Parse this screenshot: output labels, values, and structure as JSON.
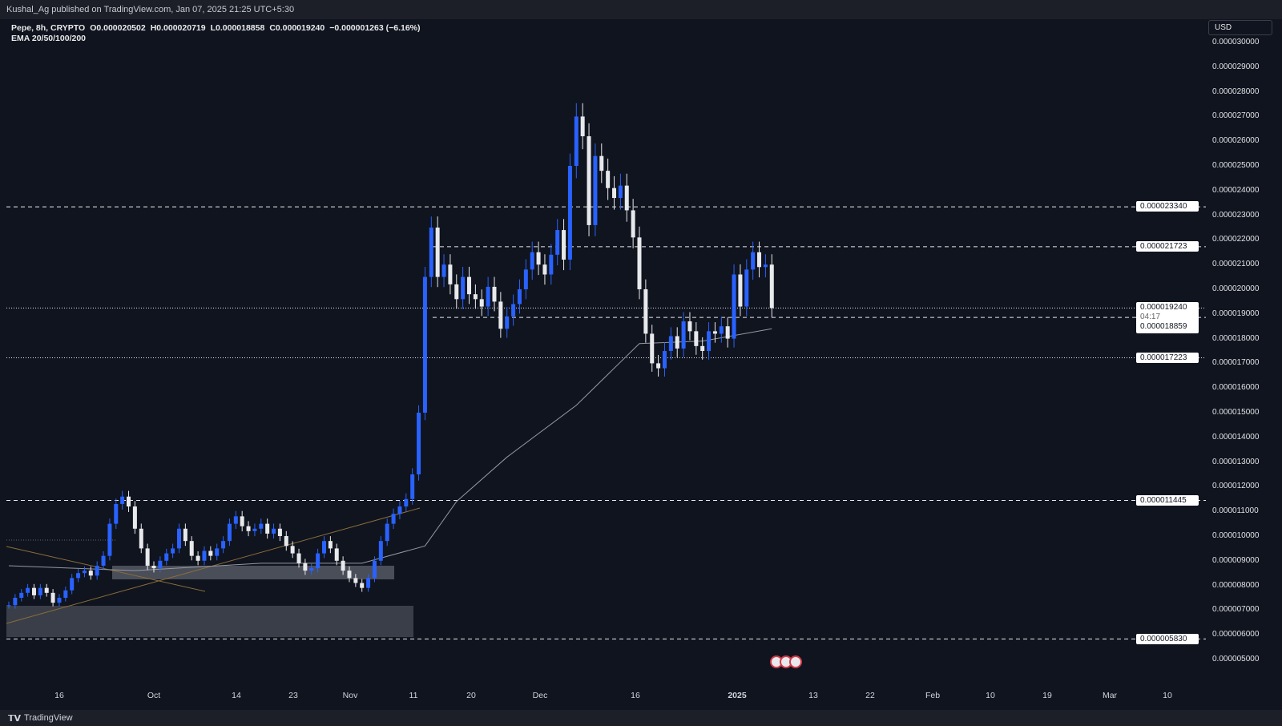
{
  "header": {
    "published": "Kushal_Ag published on TradingView.com, Jan 07, 2025 21:25 UTC+5:30"
  },
  "legend": {
    "symbol": "Pepe, 8h, CRYPTO",
    "open": "O0.000020502",
    "high": "H0.000020719",
    "low": "L0.000018858",
    "close": "C0.000019240",
    "change": "−0.000001263 (−6.16%)",
    "indicator": "EMA 20/50/100/200"
  },
  "currency": "USD",
  "price_axis": [
    "0.000030000",
    "0.000029000",
    "0.000028000",
    "0.000027000",
    "0.000026000",
    "0.000025000",
    "0.000024000",
    "0.000023000",
    "0.000022000",
    "0.000021000",
    "0.000020000",
    "0.000019000",
    "0.000018000",
    "0.000017000",
    "0.000016000",
    "0.000015000",
    "0.000014000",
    "0.000013000",
    "0.000012000",
    "0.000011000",
    "0.000010000",
    "0.000009000",
    "0.000008000",
    "0.000007000",
    "0.000006000",
    "0.000005000"
  ],
  "level_tags": {
    "l1": "0.000023340",
    "l2": "0.000021723",
    "current": "0.000019240",
    "countdown": "04:17",
    "l3": "0.000018859",
    "l4": "0.000017223",
    "l5": "0.000011445",
    "l6": "0.000005830"
  },
  "time_axis": [
    "16",
    "Oct",
    "14",
    "23",
    "Nov",
    "11",
    "20",
    "Dec",
    "16",
    "2025",
    "13",
    "22",
    "Feb",
    "10",
    "19",
    "Mar",
    "10"
  ],
  "footer": {
    "brand": "TradingView"
  },
  "colors": {
    "up": "#2962ff",
    "down": "#e8e9ec",
    "ema": "#9598a1",
    "background": "#10141e"
  },
  "chart_data": {
    "type": "candlestick",
    "title": "Pepe, 8h, CRYPTO",
    "start_date": "2024-09-08",
    "closes": [
      7.2e-06,
      7.5e-06,
      7.7e-06,
      7.9e-06,
      7.6e-06,
      7.9e-06,
      7.7e-06,
      7.3e-06,
      7.5e-06,
      7.8e-06,
      8.3e-06,
      8.5e-06,
      8.6e-06,
      8.4e-06,
      8.8e-06,
      9.2e-06,
      1.05e-05,
      1.13e-05,
      1.16e-05,
      1.12e-05,
      1.03e-05,
      9.5e-06,
      8.8e-06,
      8.7e-06,
      9e-06,
      9.3e-06,
      9.5e-06,
      1.03e-05,
      9.8e-06,
      9.2e-06,
      9e-06,
      9.4e-06,
      9.2e-06,
      9.5e-06,
      9.8e-06,
      1.05e-05,
      1.08e-05,
      1.04e-05,
      1.02e-05,
      1.03e-05,
      1.05e-05,
      1.01e-05,
      1.03e-05,
      1e-05,
      9.6e-06,
      9.3e-06,
      8.9e-06,
      8.6e-06,
      8.7e-06,
      9.3e-06,
      9.8e-06,
      9.5e-06,
      9e-06,
      8.6e-06,
      8.3e-06,
      8.1e-06,
      7.9e-06,
      8.3e-06,
      9e-06,
      9.8e-06,
      1.05e-05,
      1.09e-05,
      1.12e-05,
      1.15e-05,
      1.25e-05,
      1.5e-05,
      2.05e-05,
      2.25e-05,
      2.05e-05,
      2.1e-05,
      2.02e-05,
      1.96e-05,
      2.05e-05,
      1.98e-05,
      1.96e-05,
      1.93e-05,
      2.01e-05,
      1.95e-05,
      1.84e-05,
      1.89e-05,
      1.94e-05,
      2e-05,
      2.08e-05,
      2.15e-05,
      2.1e-05,
      2.06e-05,
      2.14e-05,
      2.24e-05,
      2.12e-05,
      2.5e-05,
      2.7e-05,
      2.62e-05,
      2.26e-05,
      2.54e-05,
      2.48e-05,
      2.41e-05,
      2.37e-05,
      2.42e-05,
      2.32e-05,
      2.21e-05,
      2e-05,
      1.82e-05,
      1.7e-05,
      1.68e-05,
      1.75e-05,
      1.81e-05,
      1.76e-05,
      1.87e-05,
      1.83e-05,
      1.77e-05,
      1.75e-05,
      1.83e-05,
      1.82e-05,
      1.85e-05,
      1.8e-05,
      2.06e-05,
      1.93e-05,
      2.08e-05,
      2.15e-05,
      2.09e-05,
      2.1e-05,
      1.924e-05
    ],
    "ema200": [
      [
        0,
        8.8e-06
      ],
      [
        20,
        8.6e-06
      ],
      [
        40,
        8.9e-06
      ],
      [
        56,
        8.9e-06
      ],
      [
        66,
        9.6e-06
      ],
      [
        71,
        1.14e-05
      ],
      [
        79,
        1.32e-05
      ],
      [
        90,
        1.53e-05
      ],
      [
        100,
        1.78e-05
      ],
      [
        110,
        1.79e-05
      ],
      [
        121,
        1.84e-05
      ]
    ],
    "horizontal_levels": [
      2.334e-05,
      2.1723e-05,
      1.924e-05,
      1.8859e-05,
      1.7223e-05,
      1.1445e-05,
      5.83e-06
    ],
    "ylim": [
      5e-06,
      3e-05
    ]
  }
}
